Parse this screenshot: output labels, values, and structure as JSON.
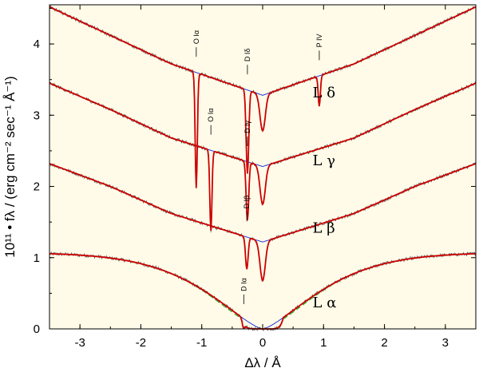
{
  "chart_data": {
    "type": "line",
    "xlabel": "Δλ / Å",
    "ylabel": "10¹¹ • fλ / (erg cm⁻² sec⁻¹ Å⁻¹)",
    "xlim": [
      -3.5,
      3.5
    ],
    "ylim": [
      0,
      4.55
    ],
    "xticks": [
      -3,
      -2,
      -1,
      0,
      1,
      2,
      3
    ],
    "xtick_labels": [
      "-3",
      "-2",
      "-1",
      "0",
      "1",
      "2",
      "3"
    ],
    "yticks": [
      0,
      1,
      2,
      3,
      4
    ],
    "ytick_labels": [
      "0",
      "1",
      "2",
      "3",
      "4"
    ],
    "grid": false,
    "background": "#fffbe8",
    "colors": {
      "observed": "#555555",
      "model": "#cc0000",
      "profile": "#2233dd",
      "alt_model": "#22aa22"
    },
    "series": [
      {
        "label": "L α",
        "continuum": [
          1.05,
          0.85,
          0.62,
          0.0,
          0.62,
          0.85,
          1.05
        ],
        "min_flux": 0.0,
        "features": [
          {
            "name": "D Iα",
            "x": -0.31
          }
        ]
      },
      {
        "label": "L β",
        "continuum": [
          2.32,
          2.0,
          1.62,
          1.22,
          1.62,
          2.0,
          2.32
        ],
        "min_flux": 0.68,
        "features": [
          {
            "name": "D Iβ",
            "x": -0.26
          }
        ]
      },
      {
        "label": "L γ",
        "continuum": [
          3.45,
          3.08,
          2.68,
          2.28,
          2.68,
          3.08,
          3.45
        ],
        "min_flux": 1.75,
        "features": [
          {
            "name": "D Iγ",
            "x": -0.25
          },
          {
            "name": "O Iα",
            "x": -0.85
          }
        ]
      },
      {
        "label": "L δ",
        "continuum": [
          4.52,
          4.12,
          3.72,
          3.28,
          3.72,
          4.12,
          4.52
        ],
        "min_flux": 2.78,
        "features": [
          {
            "name": "D Iδ",
            "x": -0.25
          },
          {
            "name": "O Iα",
            "x": -1.09
          },
          {
            "name": "P IV",
            "x": 0.93
          }
        ]
      }
    ]
  }
}
